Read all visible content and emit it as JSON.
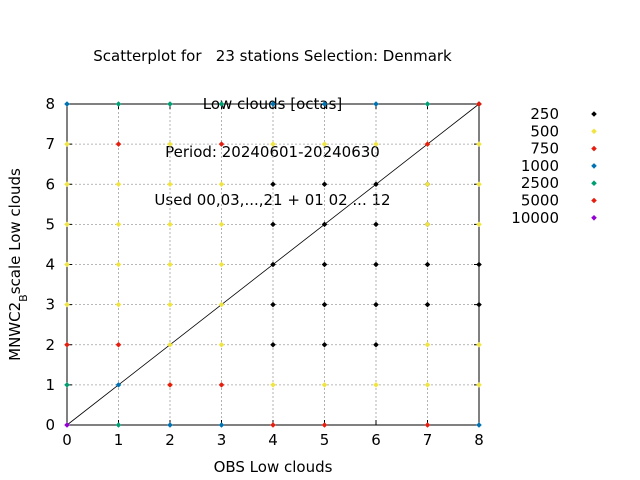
{
  "chart_data": {
    "type": "scatter",
    "title_lines": [
      "Scatterplot for   23 stations Selection: Denmark",
      "Low clouds [octas]",
      "Period: 20240601-20240630",
      "Used 00,03,...,21 + 01 02 ... 12"
    ],
    "xlabel": "OBS Low clouds",
    "ylabel_main": "MNWC2",
    "ylabel_sub": "B",
    "ylabel_tail": "scale Low clouds",
    "xlim": [
      0,
      8
    ],
    "ylim": [
      0,
      8
    ],
    "xticks": [
      "0",
      "1",
      "2",
      "3",
      "4",
      "5",
      "6",
      "7",
      "8"
    ],
    "yticks": [
      "0",
      "1",
      "2",
      "3",
      "4",
      "5",
      "6",
      "7",
      "8"
    ],
    "grid": true,
    "diagonal_line": true,
    "legend_position": "right",
    "series": [
      {
        "name": "250",
        "color": "#000000",
        "points": [
          [
            4,
            2
          ],
          [
            4,
            3
          ],
          [
            4,
            4
          ],
          [
            4,
            5
          ],
          [
            4,
            6
          ],
          [
            5,
            2
          ],
          [
            5,
            3
          ],
          [
            5,
            4
          ],
          [
            5,
            5
          ],
          [
            5,
            6
          ],
          [
            6,
            2
          ],
          [
            6,
            3
          ],
          [
            6,
            4
          ],
          [
            6,
            5
          ],
          [
            6,
            6
          ],
          [
            7,
            3
          ],
          [
            7,
            4
          ],
          [
            7,
            5
          ],
          [
            7,
            6
          ],
          [
            8,
            3
          ],
          [
            8,
            4
          ],
          [
            8,
            8
          ]
        ]
      },
      {
        "name": "500",
        "color": "#f0e442",
        "points": [
          [
            0,
            3
          ],
          [
            0,
            4
          ],
          [
            0,
            5
          ],
          [
            0,
            6
          ],
          [
            0,
            7
          ],
          [
            1,
            3
          ],
          [
            1,
            4
          ],
          [
            1,
            5
          ],
          [
            1,
            6
          ],
          [
            2,
            1
          ],
          [
            2,
            2
          ],
          [
            2,
            3
          ],
          [
            2,
            4
          ],
          [
            2,
            5
          ],
          [
            2,
            6
          ],
          [
            2,
            7
          ],
          [
            3,
            2
          ],
          [
            3,
            3
          ],
          [
            3,
            4
          ],
          [
            3,
            5
          ],
          [
            3,
            6
          ],
          [
            4,
            1
          ],
          [
            4,
            7
          ],
          [
            5,
            1
          ],
          [
            5,
            7
          ],
          [
            6,
            1
          ],
          [
            6,
            7
          ],
          [
            7,
            1
          ],
          [
            7,
            2
          ],
          [
            7,
            5
          ],
          [
            7,
            6
          ],
          [
            7,
            7
          ],
          [
            8,
            1
          ],
          [
            8,
            2
          ],
          [
            8,
            5
          ],
          [
            8,
            6
          ],
          [
            8,
            7
          ]
        ]
      },
      {
        "name": "750",
        "color": "#e51e10",
        "points": [
          [
            0,
            2
          ],
          [
            1,
            2
          ],
          [
            1,
            7
          ],
          [
            2,
            1
          ],
          [
            3,
            1
          ],
          [
            3,
            7
          ],
          [
            5,
            0
          ],
          [
            7,
            0
          ],
          [
            7,
            7
          ]
        ]
      },
      {
        "name": "1000",
        "color": "#0072b2",
        "points": [
          [
            0,
            8
          ],
          [
            1,
            1
          ],
          [
            2,
            0
          ],
          [
            3,
            0
          ],
          [
            4,
            8
          ],
          [
            5,
            8
          ],
          [
            6,
            8
          ],
          [
            8,
            0
          ]
        ]
      },
      {
        "name": "2500",
        "color": "#009e73",
        "points": [
          [
            0,
            1
          ],
          [
            1,
            0
          ],
          [
            1,
            8
          ],
          [
            2,
            8
          ],
          [
            3,
            8
          ],
          [
            7,
            8
          ]
        ]
      },
      {
        "name": "5000",
        "color": "#e51e10",
        "points": [
          [
            4,
            0
          ],
          [
            8,
            8
          ]
        ]
      },
      {
        "name": "10000",
        "color": "#9400d3",
        "points": [
          [
            0,
            0
          ]
        ]
      }
    ]
  }
}
